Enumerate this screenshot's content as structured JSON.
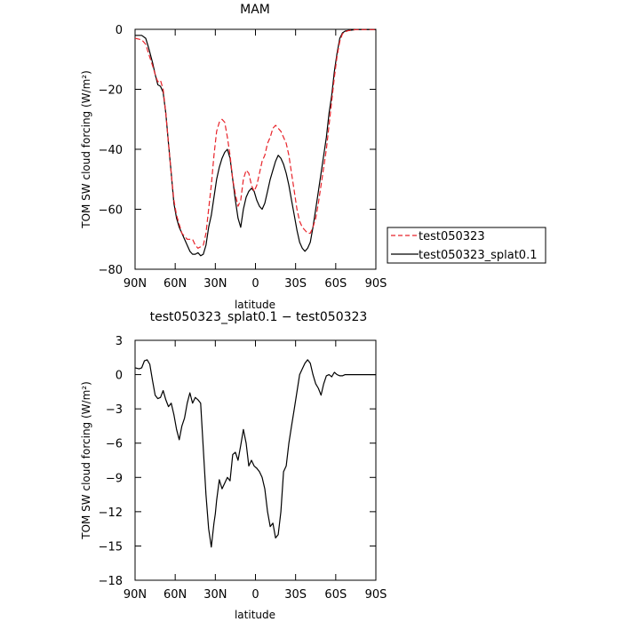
{
  "chart_data": [
    {
      "type": "line",
      "title": "MAM",
      "xlabel": "latitude",
      "ylabel": "TOM SW cloud forcing (W/m²)",
      "xlim": [
        90,
        -90
      ],
      "ylim": [
        -80,
        0
      ],
      "x_ticks": [
        90,
        60,
        30,
        0,
        -30,
        -60,
        -90
      ],
      "x_tick_labels": [
        "90N",
        "60N",
        "30N",
        "0",
        "30S",
        "60S",
        "90S"
      ],
      "y_ticks": [
        0,
        -20,
        -40,
        -60,
        -80
      ],
      "y_tick_labels": [
        "0",
        "−20",
        "−40",
        "−60",
        "−80"
      ],
      "legend": {
        "placement": "right"
      },
      "grid": false,
      "series": [
        {
          "name": "test050323",
          "color": "#e8232a",
          "dash": "dashed",
          "x": [
            90,
            85,
            82,
            80,
            77,
            75,
            73,
            71,
            69,
            67,
            65,
            63,
            61,
            59,
            57,
            55,
            53,
            51,
            49,
            47,
            45,
            43,
            41,
            39,
            37,
            35,
            33,
            31,
            29,
            27,
            25,
            23,
            21,
            19,
            17,
            15,
            13,
            11,
            9,
            7,
            5,
            3,
            1,
            -1,
            -3,
            -5,
            -7,
            -9,
            -11,
            -13,
            -15,
            -17,
            -19,
            -21,
            -23,
            -25,
            -27,
            -29,
            -31,
            -33,
            -35,
            -37,
            -39,
            -41,
            -43,
            -45,
            -47,
            -49,
            -51,
            -53,
            -55,
            -57,
            -59,
            -61,
            -63,
            -65,
            -67,
            -69,
            -71,
            -73,
            -75,
            -77,
            -79,
            -81,
            -83,
            -85,
            -87,
            -90
          ],
          "y": [
            -3,
            -3.5,
            -5,
            -8,
            -12,
            -15,
            -17.5,
            -17,
            -20,
            -28,
            -38,
            -48,
            -57,
            -62,
            -65,
            -68,
            -69,
            -70,
            -70,
            -70,
            -72,
            -73,
            -72.5,
            -72,
            -68,
            -60,
            -52,
            -42,
            -34,
            -31,
            -30,
            -31,
            -36,
            -42,
            -50,
            -55,
            -59,
            -57,
            -50,
            -47,
            -48,
            -52,
            -54,
            -52,
            -48,
            -44,
            -42,
            -38,
            -36,
            -33,
            -32,
            -33,
            -34,
            -36,
            -38,
            -42,
            -48,
            -54,
            -60,
            -64,
            -66,
            -67,
            -68,
            -68,
            -66,
            -63,
            -58,
            -52,
            -46,
            -40,
            -32,
            -24,
            -16,
            -9,
            -4,
            -1.5,
            -0.8,
            -0.5,
            -0.3,
            -0.2,
            -0.1,
            -0.1,
            -0.1,
            -0.1,
            -0.1,
            -0.1,
            -0.1,
            -0.1
          ]
        },
        {
          "name": "test050323_splat0.1",
          "color": "#000000",
          "dash": "solid",
          "x": [
            90,
            85,
            82,
            80,
            77,
            75,
            73,
            71,
            69,
            67,
            65,
            63,
            61,
            59,
            57,
            55,
            53,
            51,
            49,
            47,
            45,
            43,
            41,
            39,
            37,
            35,
            33,
            31,
            29,
            27,
            25,
            23,
            21,
            19,
            17,
            15,
            13,
            11,
            9,
            7,
            5,
            3,
            1,
            -1,
            -3,
            -5,
            -7,
            -9,
            -11,
            -13,
            -15,
            -17,
            -19,
            -21,
            -23,
            -25,
            -27,
            -29,
            -31,
            -33,
            -35,
            -37,
            -39,
            -41,
            -43,
            -45,
            -47,
            -49,
            -51,
            -53,
            -55,
            -57,
            -59,
            -61,
            -63,
            -65,
            -67,
            -69,
            -71,
            -73,
            -75,
            -77,
            -79,
            -81,
            -83,
            -85,
            -87,
            -90
          ],
          "y": [
            -2,
            -2,
            -3,
            -6,
            -11,
            -15,
            -18.5,
            -19,
            -21,
            -28,
            -38,
            -48,
            -58,
            -63,
            -66,
            -68,
            -70,
            -72,
            -74,
            -75,
            -75,
            -74.5,
            -75.5,
            -75,
            -72,
            -66,
            -62,
            -56,
            -50,
            -46,
            -43,
            -41,
            -40,
            -43,
            -50,
            -57,
            -63,
            -66,
            -60,
            -56,
            -54,
            -53,
            -54,
            -57,
            -59,
            -60,
            -58,
            -54,
            -50,
            -47,
            -44,
            -42,
            -43,
            -45,
            -48,
            -52,
            -57,
            -62,
            -67,
            -71,
            -73,
            -74,
            -73,
            -71,
            -66,
            -60,
            -54,
            -48,
            -42,
            -36,
            -28,
            -22,
            -14,
            -8,
            -3,
            -1.2,
            -0.6,
            -0.4,
            -0.3,
            -0.2,
            -0.1,
            -0.1,
            -0.1,
            -0.1,
            -0.1,
            -0.1,
            -0.1,
            -0.1
          ]
        }
      ]
    },
    {
      "type": "line",
      "title": "test050323_splat0.1 − test050323",
      "xlabel": "latitude",
      "ylabel": "TOM SW cloud forcing (W/m²)",
      "xlim": [
        90,
        -90
      ],
      "ylim": [
        -18,
        3
      ],
      "x_ticks": [
        90,
        60,
        30,
        0,
        -30,
        -60,
        -90
      ],
      "x_tick_labels": [
        "90N",
        "60N",
        "30N",
        "0",
        "30S",
        "60S",
        "90S"
      ],
      "y_ticks": [
        3,
        0,
        -3,
        -6,
        -9,
        -12,
        -15,
        -18
      ],
      "y_tick_labels": [
        "3",
        "0",
        "−3",
        "−6",
        "−9",
        "−12",
        "−15",
        "−18"
      ],
      "grid": false,
      "series": [
        {
          "color": "#000000",
          "dash": "solid",
          "x": [
            90,
            87,
            85,
            83,
            81,
            79,
            77,
            75,
            73,
            71,
            69,
            67,
            65,
            63,
            61,
            59,
            57,
            55,
            53,
            51,
            49,
            47,
            45,
            43,
            41,
            39,
            37,
            35,
            33,
            31,
            30,
            29,
            27,
            25,
            23,
            21,
            19,
            17,
            15,
            13,
            11,
            9,
            7,
            5,
            3,
            1,
            -1,
            -3,
            -5,
            -7,
            -9,
            -11,
            -13,
            -15,
            -17,
            -19,
            -21,
            -23,
            -25,
            -27,
            -29,
            -31,
            -33,
            -35,
            -37,
            -39,
            -41,
            -43,
            -45,
            -47,
            -49,
            -51,
            -53,
            -55,
            -57,
            -59,
            -61,
            -63,
            -65,
            -67,
            -69,
            -71,
            -73,
            -75,
            -77,
            -79,
            -81,
            -83,
            -85,
            -87,
            -90
          ],
          "y": [
            0.6,
            0.5,
            0.6,
            1.2,
            1.3,
            0.9,
            -0.5,
            -1.8,
            -2.1,
            -2.0,
            -1.4,
            -2.2,
            -2.8,
            -2.5,
            -3.5,
            -4.8,
            -5.7,
            -4.5,
            -3.8,
            -2.5,
            -1.6,
            -2.5,
            -2.0,
            -2.2,
            -2.5,
            -6.5,
            -10.5,
            -13.5,
            -15.1,
            -13.0,
            -12.2,
            -11.0,
            -9.2,
            -10.0,
            -9.5,
            -9.0,
            -9.3,
            -7.0,
            -6.8,
            -7.5,
            -6.2,
            -4.8,
            -6.0,
            -8.0,
            -7.5,
            -8.0,
            -8.2,
            -8.5,
            -9.0,
            -10.0,
            -12.0,
            -13.3,
            -13.0,
            -14.3,
            -14.0,
            -12.0,
            -8.5,
            -8.0,
            -6.0,
            -4.5,
            -3.0,
            -1.5,
            0.0,
            0.5,
            1.0,
            1.3,
            1.0,
            0.0,
            -0.8,
            -1.2,
            -1.8,
            -0.8,
            -0.1,
            0.0,
            -0.2,
            0.2,
            0.0,
            -0.1,
            -0.1,
            0.0,
            0.0,
            0.0,
            0.0,
            0.0,
            0.0,
            0.0,
            0.0,
            0.0,
            0.0,
            0.0,
            0.0
          ]
        }
      ]
    }
  ]
}
